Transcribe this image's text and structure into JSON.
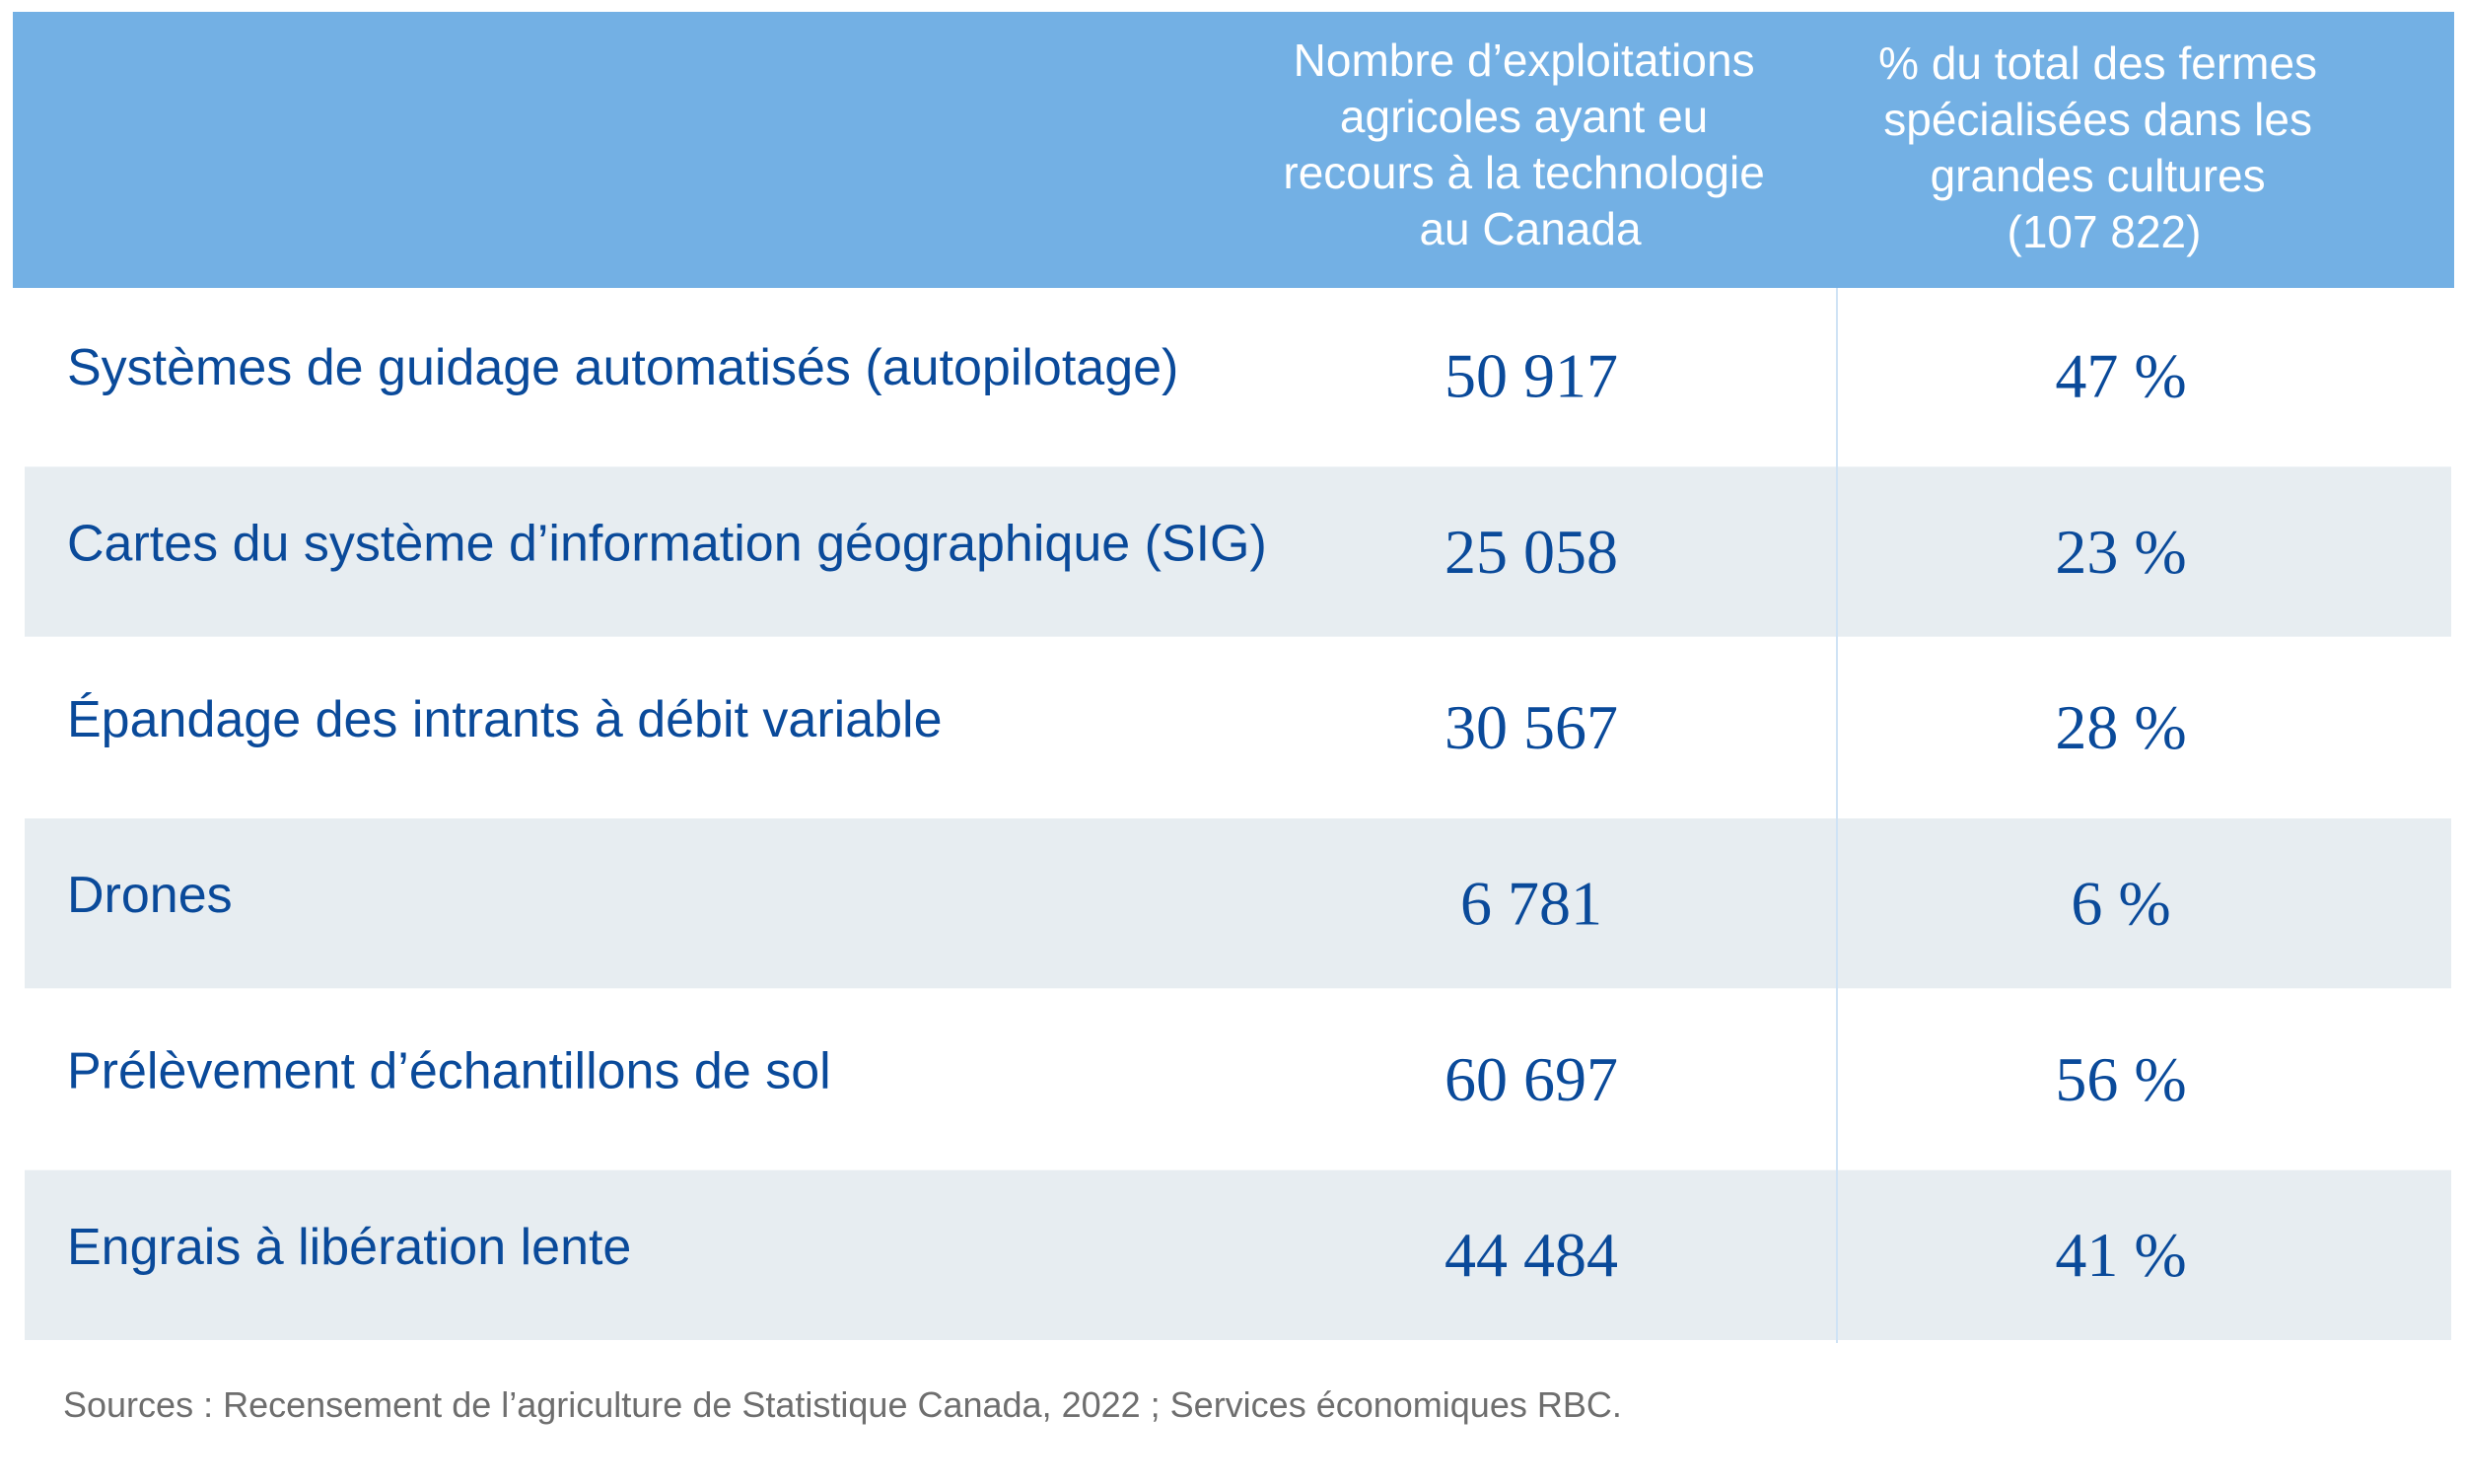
{
  "header": {
    "column_1": [
      "Nombre d’exploitations",
      "agricoles ayant eu",
      "recours à la technologie",
      "au Canada"
    ],
    "column_2": [
      "% du total des fermes",
      "spécialisées dans les",
      "grandes cultures",
      "(107 822)"
    ]
  },
  "chart_data": {
    "type": "table",
    "columns": [
      "",
      "Nombre d’exploitations agricoles ayant eu recours à la technologie au Canada",
      "% du total des fermes spécialisées dans les grandes cultures (107 822)"
    ],
    "rows": [
      {
        "label": "Systèmes de guidage automatisés (autopilotage)",
        "count": "50 917",
        "percent": "47 %"
      },
      {
        "label": "Cartes du système d’information géographique (SIG)",
        "count": "25 058",
        "percent": "23 %"
      },
      {
        "label": "Épandage des intrants à débit variable",
        "count": "30 567",
        "percent": "28 %"
      },
      {
        "label": "Drones",
        "count": "6 781",
        "percent": "6 %"
      },
      {
        "label": "Prélèvement d’échantillons de sol",
        "count": "60 697",
        "percent": "56 %"
      },
      {
        "label": "Engrais à libération lente",
        "count": "44 484",
        "percent": "41 %"
      }
    ]
  },
  "footer": {
    "source": "Sources : Recensement de l’agriculture de Statistique Canada, 2022 ; Services économiques RBC."
  },
  "colors": {
    "header_background": "#73b0e4",
    "header_text": "#ffffff",
    "row_shade": "#e7edf1",
    "body_text": "#0a4a9a",
    "source_text": "#6e6e6e"
  }
}
